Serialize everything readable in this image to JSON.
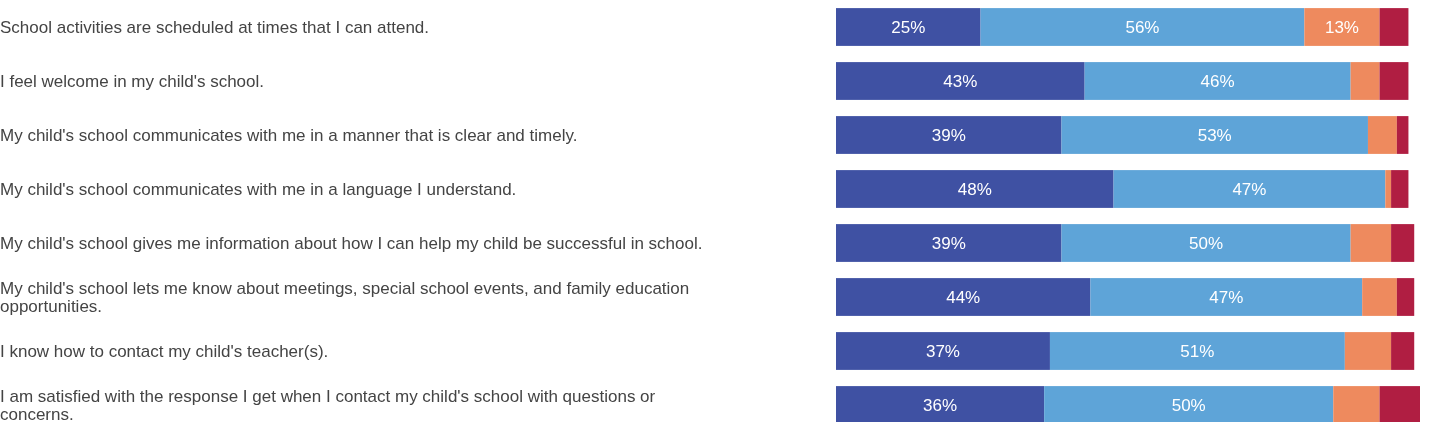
{
  "chart_data": {
    "type": "bar",
    "orientation": "horizontal",
    "stacked": true,
    "categories": [
      "School activities are scheduled at times that I can attend.",
      "I feel welcome in my child's school.",
      "My child's school communicates with me in a manner that is clear and timely.",
      "My child's school communicates with me in a language I understand.",
      "My child's school gives me information about how I can help my child be successful in school.",
      "My child's school lets me know about meetings, special school events, and family education opportunities.",
      "I know how to contact my child's teacher(s).",
      "I am satisfied with the response I get when I contact my child's school with questions or concerns."
    ],
    "series": [
      {
        "color": "#3f51a3",
        "values": [
          25,
          43,
          39,
          48,
          39,
          44,
          37,
          36
        ],
        "value_labels": [
          "25%",
          "43%",
          "39%",
          "48%",
          "39%",
          "44%",
          "37%",
          "36%"
        ]
      },
      {
        "color": "#5ea4d8",
        "values": [
          56,
          46,
          53,
          47,
          50,
          47,
          51,
          50
        ],
        "value_labels": [
          "56%",
          "46%",
          "53%",
          "47%",
          "50%",
          "47%",
          "51%",
          "50%"
        ]
      },
      {
        "color": "#ee8a5e",
        "values": [
          13,
          5,
          5,
          1,
          7,
          6,
          8,
          8
        ],
        "value_labels": [
          "13%",
          null,
          null,
          null,
          null,
          null,
          null,
          null
        ]
      },
      {
        "color": "#b01e42",
        "values": [
          5,
          5,
          2,
          3,
          4,
          3,
          4,
          7
        ]
      }
    ]
  }
}
